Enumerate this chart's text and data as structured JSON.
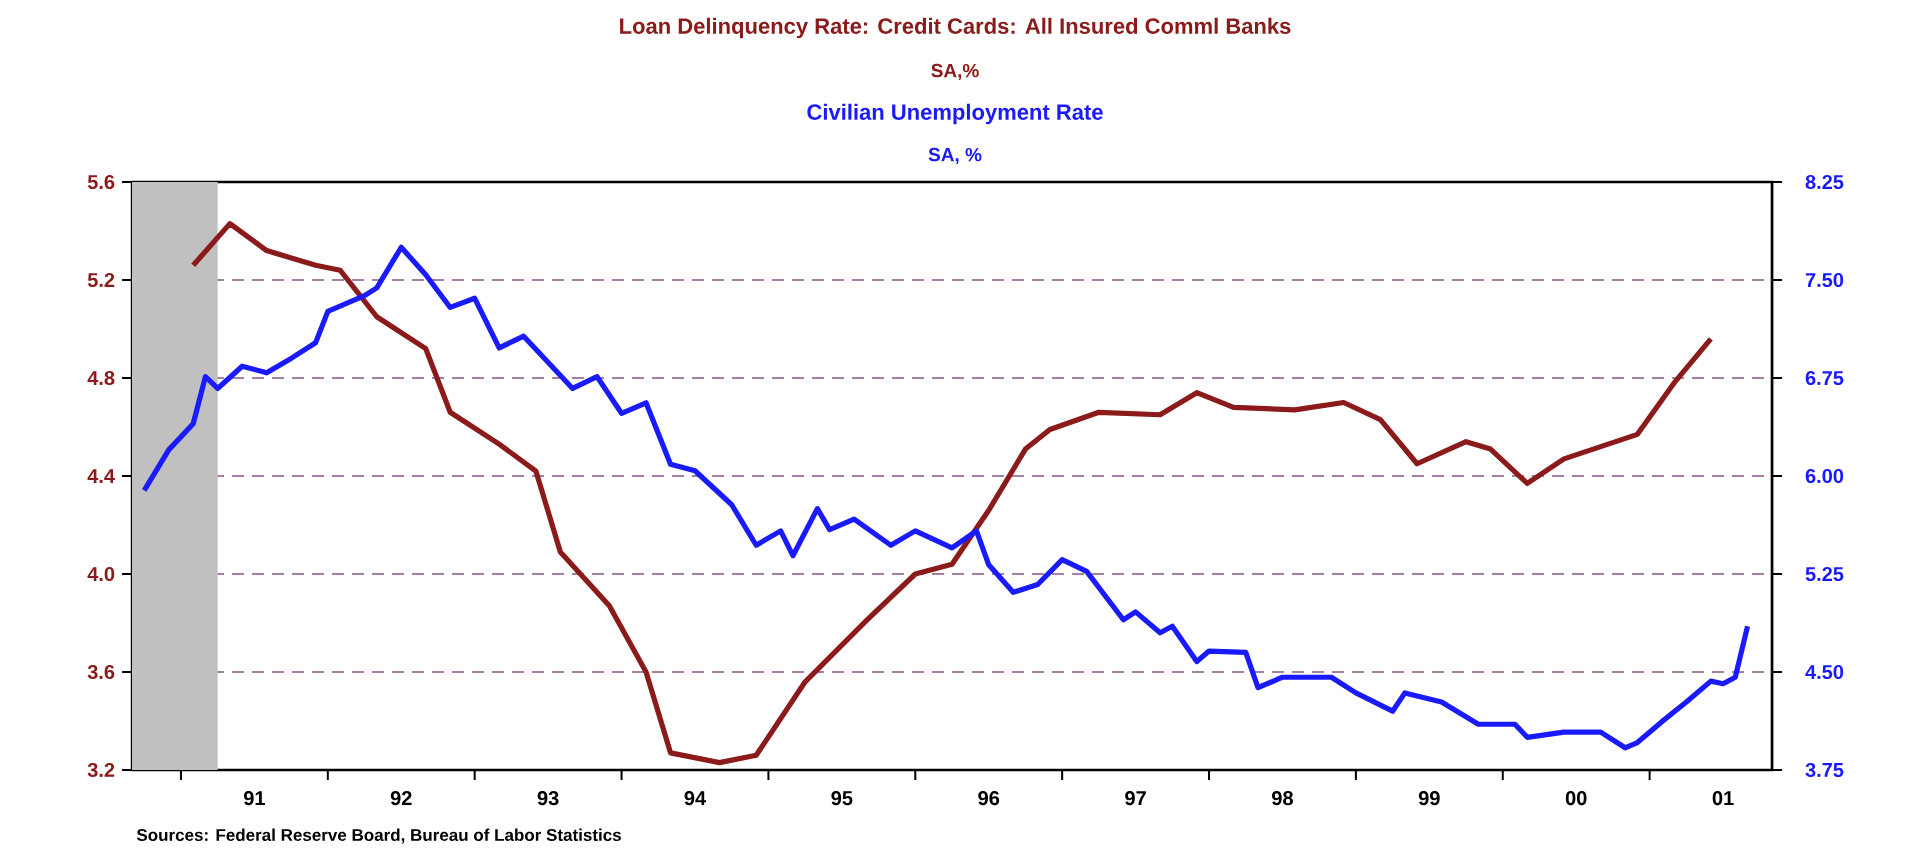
{
  "chart_data": {
    "type": "line",
    "xlim": [
      "1990-09",
      "2001-11"
    ],
    "xticks": [
      {
        "value": "1991",
        "label": null
      },
      {
        "value": "1991-07",
        "label": "91"
      },
      {
        "value": "1992",
        "label": null
      },
      {
        "value": "1992-07",
        "label": "92"
      },
      {
        "value": "1993",
        "label": null
      },
      {
        "value": "1993-07",
        "label": "93"
      },
      {
        "value": "1994",
        "label": null
      },
      {
        "value": "1994-07",
        "label": "94"
      },
      {
        "value": "1995",
        "label": null
      },
      {
        "value": "1995-07",
        "label": "95"
      },
      {
        "value": "1996",
        "label": null
      },
      {
        "value": "1996-07",
        "label": "96"
      },
      {
        "value": "1997",
        "label": null
      },
      {
        "value": "1997-07",
        "label": "97"
      },
      {
        "value": "1998",
        "label": null
      },
      {
        "value": "1998-07",
        "label": "98"
      },
      {
        "value": "1999",
        "label": null
      },
      {
        "value": "1999-07",
        "label": "99"
      },
      {
        "value": "2000",
        "label": null
      },
      {
        "value": "2000-07",
        "label": "00"
      },
      {
        "value": "2001",
        "label": null
      },
      {
        "value": "2001-07",
        "label": "01"
      }
    ],
    "ylim": [
      3.2,
      5.6
    ],
    "yticks": [
      3.2,
      3.6,
      {
        "value": 4,
        "label": "4.0"
      },
      4.4,
      4.8,
      5.2,
      5.6
    ],
    "y2lim": [
      3.75,
      8.25
    ],
    "y2ticks": [
      3.75,
      {
        "value": 4.5,
        "label": "4.50"
      },
      5.25,
      {
        "value": 6,
        "label": "6.00"
      },
      6.75,
      {
        "value": 7.5,
        "label": "7.50"
      },
      8.25
    ],
    "grid": "y",
    "marker": "none",
    "line_style": "solid",
    "bands": [
      {
        "axis": "x",
        "from": "1990-09",
        "to": "1991-04",
        "color": "#c0c0c0"
      }
    ],
    "annotations": [
      "SA,%",
      "SA, %",
      "Sources:  Federal Reserve Board, Bureau of Labor Statistics"
    ],
    "series": [
      {
        "name": "Loan Delinquency Rate: Credit Cards: All Insured Comml Banks",
        "color": "#8b1a1a",
        "x": [
          "1991-02",
          "1991-05",
          "1991-08",
          "1991-12",
          "1992-02",
          "1992-05",
          "1992-09",
          "1992-11",
          "1993-03",
          "1993-06",
          "1993-08",
          "1993-12",
          "1994-03",
          "1994-05",
          "1994-09",
          "1994-12",
          "1995-04",
          "1995-09",
          "1996-01",
          "1996-04",
          "1996-07",
          "1996-10",
          "1996-12",
          "1997-04",
          "1997-09",
          "1997-12",
          "1998-03",
          "1998-08",
          "1998-12",
          "1999-03",
          "1999-06",
          "1999-10",
          "1999-12",
          "2000-03",
          "2000-06",
          "2000-12",
          "2001-03",
          "2001-06"
        ],
        "values": [
          5.26,
          5.43,
          5.32,
          5.26,
          5.24,
          5.05,
          4.92,
          4.66,
          4.53,
          4.42,
          4.09,
          3.87,
          3.6,
          3.27,
          3.23,
          3.26,
          3.56,
          3.81,
          4.0,
          4.04,
          4.26,
          4.51,
          4.59,
          4.66,
          4.65,
          4.74,
          4.68,
          4.67,
          4.7,
          4.63,
          4.45,
          4.54,
          4.51,
          4.37,
          4.47,
          4.57,
          4.78,
          4.96
        ]
      },
      {
        "name": "Civilian Unemployment Rate",
        "color": "#1a1aff",
        "axis": "y2",
        "x": [
          "1990-10",
          "1990-12",
          "1991-02",
          "1991-03",
          "1991-04",
          "1991-06",
          "1991-08",
          "1991-10",
          "1991-12",
          "1992-01",
          "1992-02",
          "1992-04",
          "1992-05",
          "1992-07",
          "1992-09",
          "1992-11",
          "1993-01",
          "1993-03",
          "1993-05",
          "1993-09",
          "1993-11",
          "1994-01",
          "1994-03",
          "1994-05",
          "1994-07",
          "1994-10",
          "1994-12",
          "1995-02",
          "1995-03",
          "1995-05",
          "1995-06",
          "1995-08",
          "1995-11",
          "1996-01",
          "1996-04",
          "1996-06",
          "1996-07",
          "1996-09",
          "1996-11",
          "1997-01",
          "1997-03",
          "1997-06",
          "1997-07",
          "1997-09",
          "1997-10",
          "1997-12",
          "1998-01",
          "1998-04",
          "1998-05",
          "1998-07",
          "1998-11",
          "1999-01",
          "1999-04",
          "1999-05",
          "1999-08",
          "1999-11",
          "2000-02",
          "2000-03",
          "2000-06",
          "2000-09",
          "2000-11",
          "2000-12",
          "2001-02",
          "2001-04",
          "2001-06",
          "2001-07",
          "2001-08",
          "2001-09"
        ],
        "values": [
          5.89,
          6.2,
          6.4,
          6.76,
          6.67,
          6.84,
          6.79,
          6.9,
          7.02,
          7.26,
          7.3,
          7.38,
          7.44,
          7.75,
          7.54,
          7.29,
          7.36,
          6.98,
          7.07,
          6.67,
          6.76,
          6.48,
          6.56,
          6.09,
          6.04,
          5.78,
          5.47,
          5.58,
          5.39,
          5.75,
          5.59,
          5.67,
          5.47,
          5.58,
          5.45,
          5.58,
          5.32,
          5.11,
          5.17,
          5.36,
          5.27,
          4.9,
          4.96,
          4.8,
          4.85,
          4.58,
          4.66,
          4.65,
          4.38,
          4.46,
          4.46,
          4.34,
          4.2,
          4.34,
          4.27,
          4.1,
          4.1,
          4.0,
          4.04,
          4.04,
          3.92,
          3.96,
          4.12,
          4.27,
          4.43,
          4.41,
          4.46,
          4.85
        ]
      }
    ]
  }
}
